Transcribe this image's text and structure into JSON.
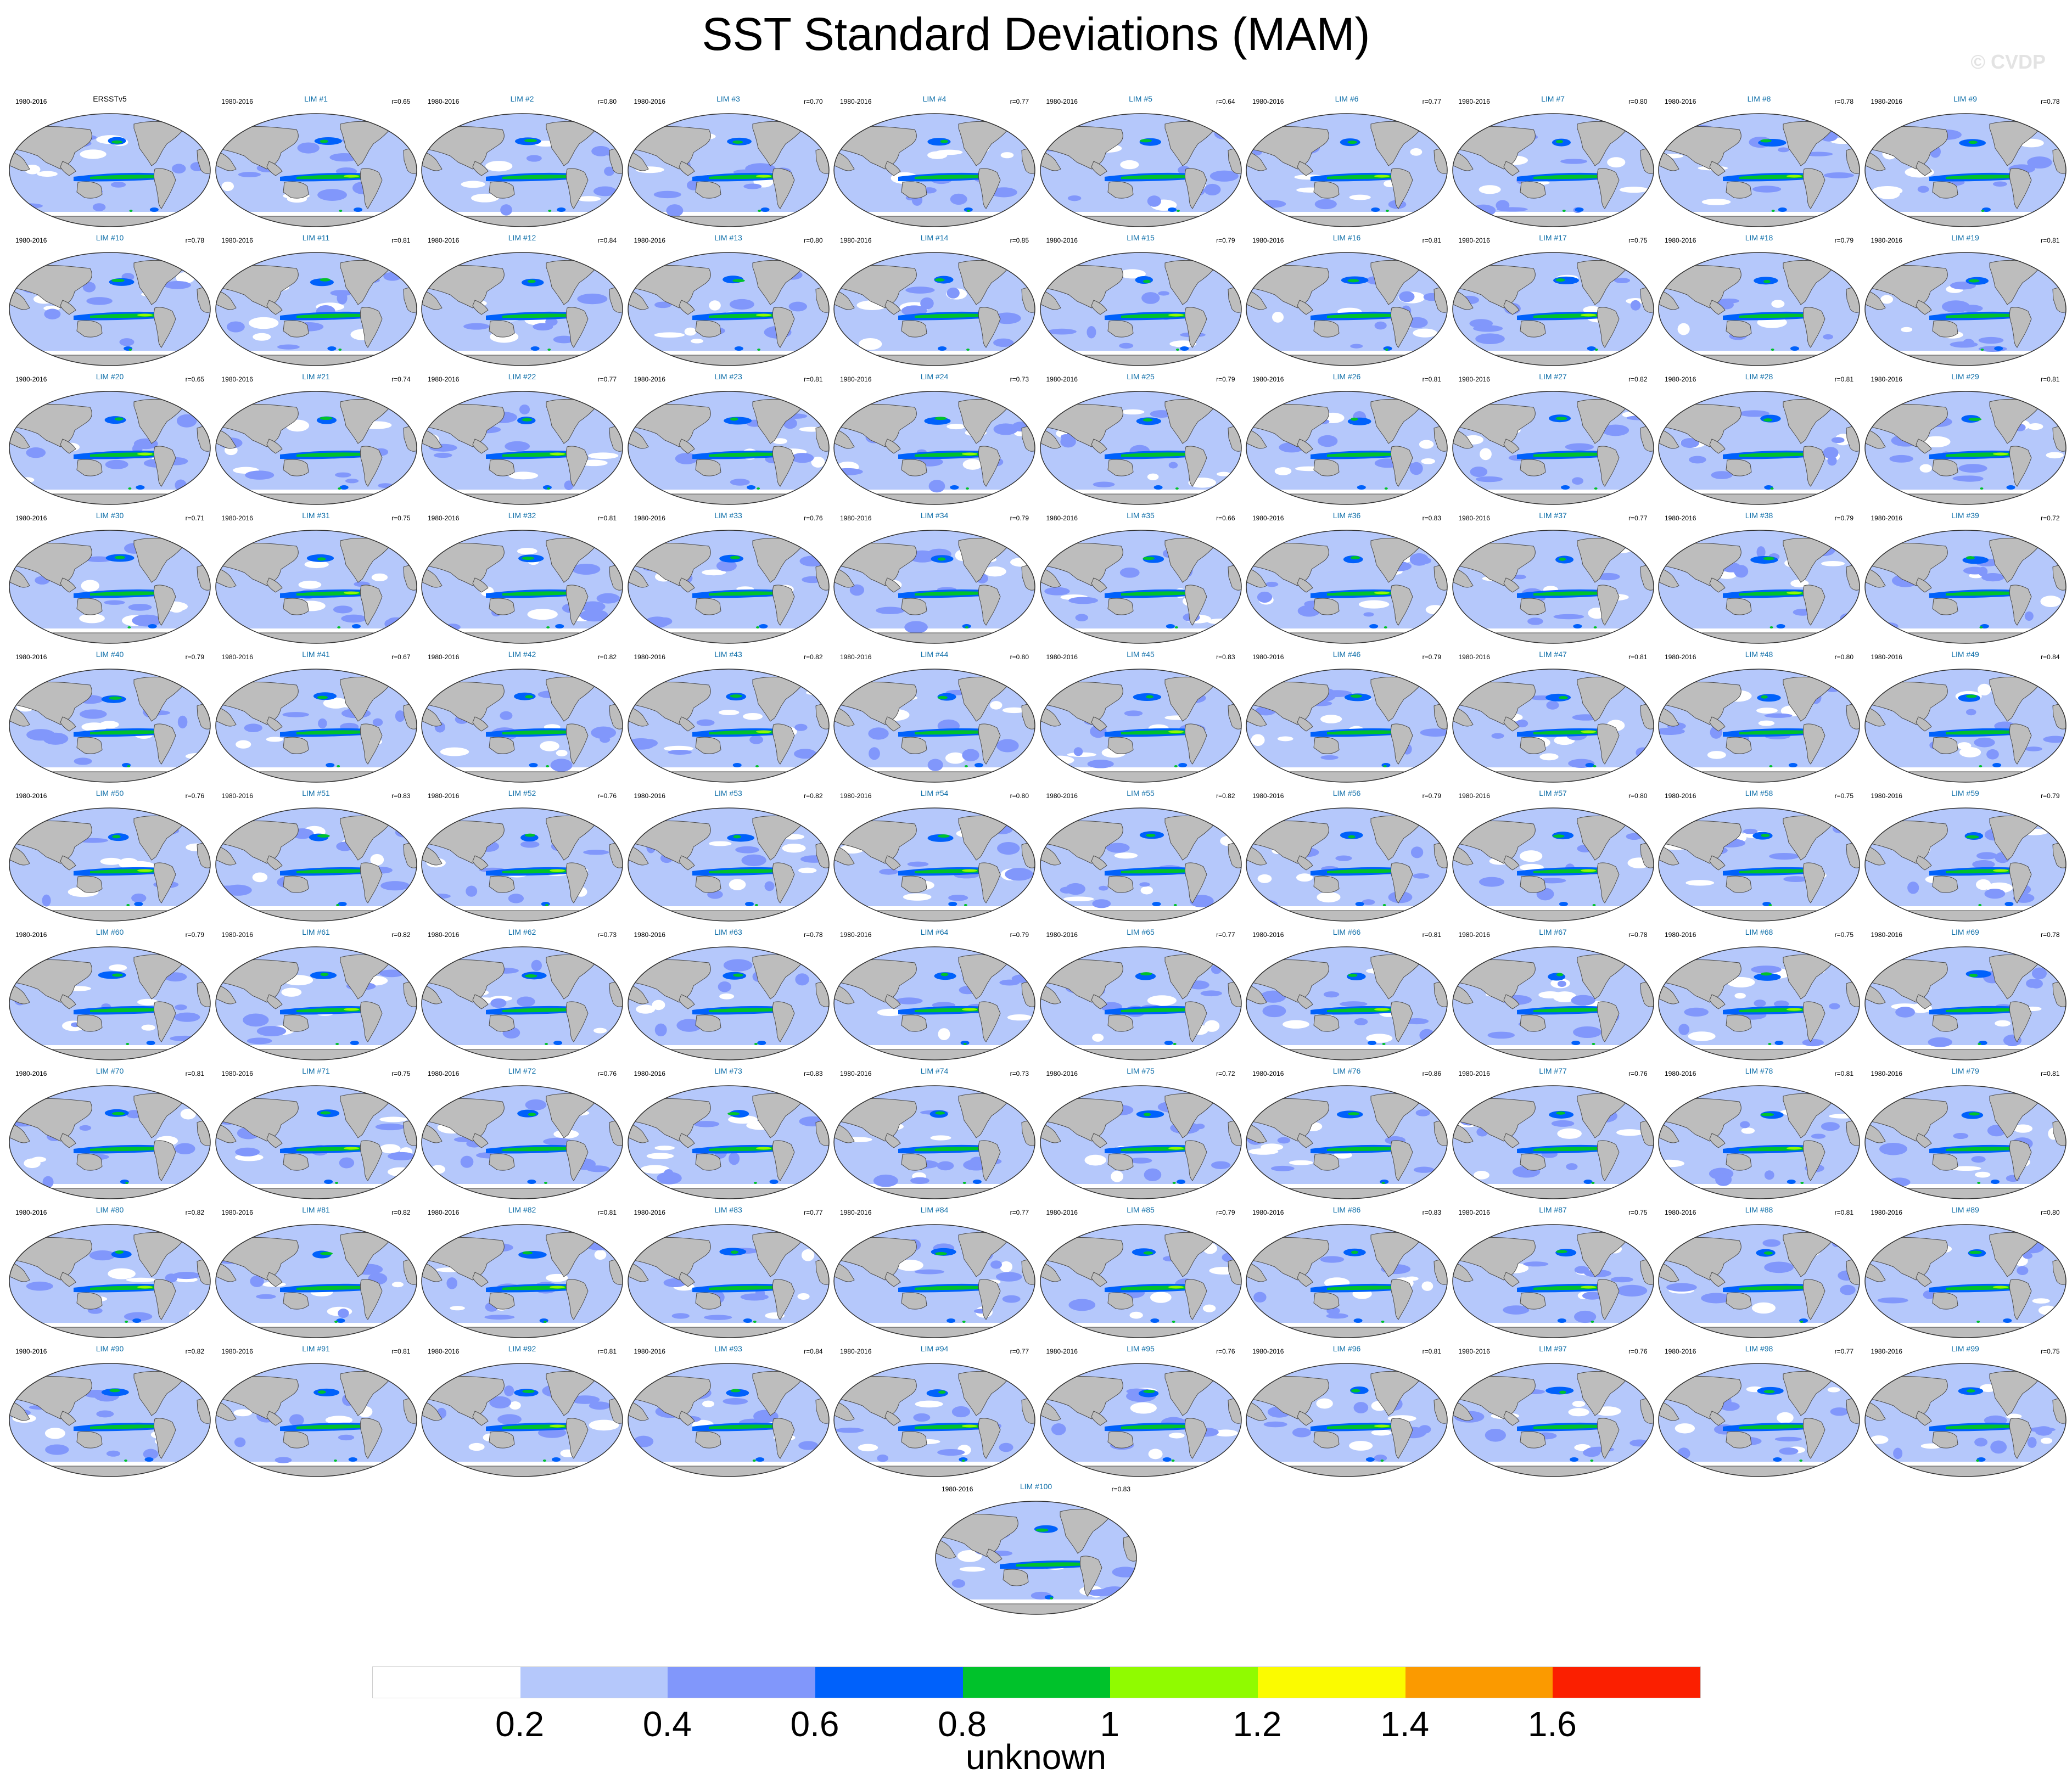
{
  "title": "SST Standard Deviations (MAM)",
  "watermark": "© CVDP",
  "colors": {
    "land": "#bdbdbd",
    "coast": "#4a4a4a",
    "panel_name": "#0e6ea8"
  },
  "chart_data": {
    "type": "heatmap",
    "title": "SST Standard Deviations (MAM)",
    "colorbar": {
      "levels": [
        "0.2",
        "0.4",
        "0.6",
        "0.8",
        "1",
        "1.2",
        "1.4",
        "1.6"
      ],
      "colors": [
        "#ffffff",
        "#b5c8fb",
        "#8197fb",
        "#0061fb",
        "#00c22b",
        "#90fb00",
        "#fbfb00",
        "#fb9a00",
        "#fb1f00"
      ],
      "label": "unknown"
    },
    "panels": [
      {
        "name": "ERSSTv5",
        "period": "1980-2016",
        "corr": ""
      },
      {
        "name": "LIM #1",
        "period": "1980-2016",
        "corr": "r=0.65"
      },
      {
        "name": "LIM #2",
        "period": "1980-2016",
        "corr": "r=0.80"
      },
      {
        "name": "LIM #3",
        "period": "1980-2016",
        "corr": "r=0.70"
      },
      {
        "name": "LIM #4",
        "period": "1980-2016",
        "corr": "r=0.77"
      },
      {
        "name": "LIM #5",
        "period": "1980-2016",
        "corr": "r=0.64"
      },
      {
        "name": "LIM #6",
        "period": "1980-2016",
        "corr": "r=0.77"
      },
      {
        "name": "LIM #7",
        "period": "1980-2016",
        "corr": "r=0.80"
      },
      {
        "name": "LIM #8",
        "period": "1980-2016",
        "corr": "r=0.78"
      },
      {
        "name": "LIM #9",
        "period": "1980-2016",
        "corr": "r=0.78"
      },
      {
        "name": "LIM #10",
        "period": "1980-2016",
        "corr": "r=0.78"
      },
      {
        "name": "LIM #11",
        "period": "1980-2016",
        "corr": "r=0.81"
      },
      {
        "name": "LIM #12",
        "period": "1980-2016",
        "corr": "r=0.84"
      },
      {
        "name": "LIM #13",
        "period": "1980-2016",
        "corr": "r=0.80"
      },
      {
        "name": "LIM #14",
        "period": "1980-2016",
        "corr": "r=0.85"
      },
      {
        "name": "LIM #15",
        "period": "1980-2016",
        "corr": "r=0.79"
      },
      {
        "name": "LIM #16",
        "period": "1980-2016",
        "corr": "r=0.81"
      },
      {
        "name": "LIM #17",
        "period": "1980-2016",
        "corr": "r=0.75"
      },
      {
        "name": "LIM #18",
        "period": "1980-2016",
        "corr": "r=0.79"
      },
      {
        "name": "LIM #19",
        "period": "1980-2016",
        "corr": "r=0.81"
      },
      {
        "name": "LIM #20",
        "period": "1980-2016",
        "corr": "r=0.65"
      },
      {
        "name": "LIM #21",
        "period": "1980-2016",
        "corr": "r=0.74"
      },
      {
        "name": "LIM #22",
        "period": "1980-2016",
        "corr": "r=0.77"
      },
      {
        "name": "LIM #23",
        "period": "1980-2016",
        "corr": "r=0.81"
      },
      {
        "name": "LIM #24",
        "period": "1980-2016",
        "corr": "r=0.73"
      },
      {
        "name": "LIM #25",
        "period": "1980-2016",
        "corr": "r=0.79"
      },
      {
        "name": "LIM #26",
        "period": "1980-2016",
        "corr": "r=0.81"
      },
      {
        "name": "LIM #27",
        "period": "1980-2016",
        "corr": "r=0.82"
      },
      {
        "name": "LIM #28",
        "period": "1980-2016",
        "corr": "r=0.81"
      },
      {
        "name": "LIM #29",
        "period": "1980-2016",
        "corr": "r=0.81"
      },
      {
        "name": "LIM #30",
        "period": "1980-2016",
        "corr": "r=0.71"
      },
      {
        "name": "LIM #31",
        "period": "1980-2016",
        "corr": "r=0.75"
      },
      {
        "name": "LIM #32",
        "period": "1980-2016",
        "corr": "r=0.81"
      },
      {
        "name": "LIM #33",
        "period": "1980-2016",
        "corr": "r=0.76"
      },
      {
        "name": "LIM #34",
        "period": "1980-2016",
        "corr": "r=0.79"
      },
      {
        "name": "LIM #35",
        "period": "1980-2016",
        "corr": "r=0.66"
      },
      {
        "name": "LIM #36",
        "period": "1980-2016",
        "corr": "r=0.83"
      },
      {
        "name": "LIM #37",
        "period": "1980-2016",
        "corr": "r=0.77"
      },
      {
        "name": "LIM #38",
        "period": "1980-2016",
        "corr": "r=0.79"
      },
      {
        "name": "LIM #39",
        "period": "1980-2016",
        "corr": "r=0.72"
      },
      {
        "name": "LIM #40",
        "period": "1980-2016",
        "corr": "r=0.79"
      },
      {
        "name": "LIM #41",
        "period": "1980-2016",
        "corr": "r=0.67"
      },
      {
        "name": "LIM #42",
        "period": "1980-2016",
        "corr": "r=0.82"
      },
      {
        "name": "LIM #43",
        "period": "1980-2016",
        "corr": "r=0.82"
      },
      {
        "name": "LIM #44",
        "period": "1980-2016",
        "corr": "r=0.80"
      },
      {
        "name": "LIM #45",
        "period": "1980-2016",
        "corr": "r=0.83"
      },
      {
        "name": "LIM #46",
        "period": "1980-2016",
        "corr": "r=0.79"
      },
      {
        "name": "LIM #47",
        "period": "1980-2016",
        "corr": "r=0.81"
      },
      {
        "name": "LIM #48",
        "period": "1980-2016",
        "corr": "r=0.80"
      },
      {
        "name": "LIM #49",
        "period": "1980-2016",
        "corr": "r=0.84"
      },
      {
        "name": "LIM #50",
        "period": "1980-2016",
        "corr": "r=0.76"
      },
      {
        "name": "LIM #51",
        "period": "1980-2016",
        "corr": "r=0.83"
      },
      {
        "name": "LIM #52",
        "period": "1980-2016",
        "corr": "r=0.76"
      },
      {
        "name": "LIM #53",
        "period": "1980-2016",
        "corr": "r=0.82"
      },
      {
        "name": "LIM #54",
        "period": "1980-2016",
        "corr": "r=0.80"
      },
      {
        "name": "LIM #55",
        "period": "1980-2016",
        "corr": "r=0.82"
      },
      {
        "name": "LIM #56",
        "period": "1980-2016",
        "corr": "r=0.79"
      },
      {
        "name": "LIM #57",
        "period": "1980-2016",
        "corr": "r=0.80"
      },
      {
        "name": "LIM #58",
        "period": "1980-2016",
        "corr": "r=0.75"
      },
      {
        "name": "LIM #59",
        "period": "1980-2016",
        "corr": "r=0.79"
      },
      {
        "name": "LIM #60",
        "period": "1980-2016",
        "corr": "r=0.79"
      },
      {
        "name": "LIM #61",
        "period": "1980-2016",
        "corr": "r=0.82"
      },
      {
        "name": "LIM #62",
        "period": "1980-2016",
        "corr": "r=0.73"
      },
      {
        "name": "LIM #63",
        "period": "1980-2016",
        "corr": "r=0.78"
      },
      {
        "name": "LIM #64",
        "period": "1980-2016",
        "corr": "r=0.79"
      },
      {
        "name": "LIM #65",
        "period": "1980-2016",
        "corr": "r=0.77"
      },
      {
        "name": "LIM #66",
        "period": "1980-2016",
        "corr": "r=0.81"
      },
      {
        "name": "LIM #67",
        "period": "1980-2016",
        "corr": "r=0.78"
      },
      {
        "name": "LIM #68",
        "period": "1980-2016",
        "corr": "r=0.75"
      },
      {
        "name": "LIM #69",
        "period": "1980-2016",
        "corr": "r=0.78"
      },
      {
        "name": "LIM #70",
        "period": "1980-2016",
        "corr": "r=0.81"
      },
      {
        "name": "LIM #71",
        "period": "1980-2016",
        "corr": "r=0.75"
      },
      {
        "name": "LIM #72",
        "period": "1980-2016",
        "corr": "r=0.76"
      },
      {
        "name": "LIM #73",
        "period": "1980-2016",
        "corr": "r=0.83"
      },
      {
        "name": "LIM #74",
        "period": "1980-2016",
        "corr": "r=0.73"
      },
      {
        "name": "LIM #75",
        "period": "1980-2016",
        "corr": "r=0.72"
      },
      {
        "name": "LIM #76",
        "period": "1980-2016",
        "corr": "r=0.86"
      },
      {
        "name": "LIM #77",
        "period": "1980-2016",
        "corr": "r=0.76"
      },
      {
        "name": "LIM #78",
        "period": "1980-2016",
        "corr": "r=0.81"
      },
      {
        "name": "LIM #79",
        "period": "1980-2016",
        "corr": "r=0.81"
      },
      {
        "name": "LIM #80",
        "period": "1980-2016",
        "corr": "r=0.82"
      },
      {
        "name": "LIM #81",
        "period": "1980-2016",
        "corr": "r=0.82"
      },
      {
        "name": "LIM #82",
        "period": "1980-2016",
        "corr": "r=0.81"
      },
      {
        "name": "LIM #83",
        "period": "1980-2016",
        "corr": "r=0.77"
      },
      {
        "name": "LIM #84",
        "period": "1980-2016",
        "corr": "r=0.77"
      },
      {
        "name": "LIM #85",
        "period": "1980-2016",
        "corr": "r=0.79"
      },
      {
        "name": "LIM #86",
        "period": "1980-2016",
        "corr": "r=0.83"
      },
      {
        "name": "LIM #87",
        "period": "1980-2016",
        "corr": "r=0.75"
      },
      {
        "name": "LIM #88",
        "period": "1980-2016",
        "corr": "r=0.81"
      },
      {
        "name": "LIM #89",
        "period": "1980-2016",
        "corr": "r=0.80"
      },
      {
        "name": "LIM #90",
        "period": "1980-2016",
        "corr": "r=0.82"
      },
      {
        "name": "LIM #91",
        "period": "1980-2016",
        "corr": "r=0.81"
      },
      {
        "name": "LIM #92",
        "period": "1980-2016",
        "corr": "r=0.81"
      },
      {
        "name": "LIM #93",
        "period": "1980-2016",
        "corr": "r=0.84"
      },
      {
        "name": "LIM #94",
        "period": "1980-2016",
        "corr": "r=0.77"
      },
      {
        "name": "LIM #95",
        "period": "1980-2016",
        "corr": "r=0.76"
      },
      {
        "name": "LIM #96",
        "period": "1980-2016",
        "corr": "r=0.81"
      },
      {
        "name": "LIM #97",
        "period": "1980-2016",
        "corr": "r=0.76"
      },
      {
        "name": "LIM #98",
        "period": "1980-2016",
        "corr": "r=0.77"
      },
      {
        "name": "LIM #99",
        "period": "1980-2016",
        "corr": "r=0.75"
      },
      {
        "name": "LIM #100",
        "period": "1980-2016",
        "corr": "r=0.83"
      }
    ]
  }
}
